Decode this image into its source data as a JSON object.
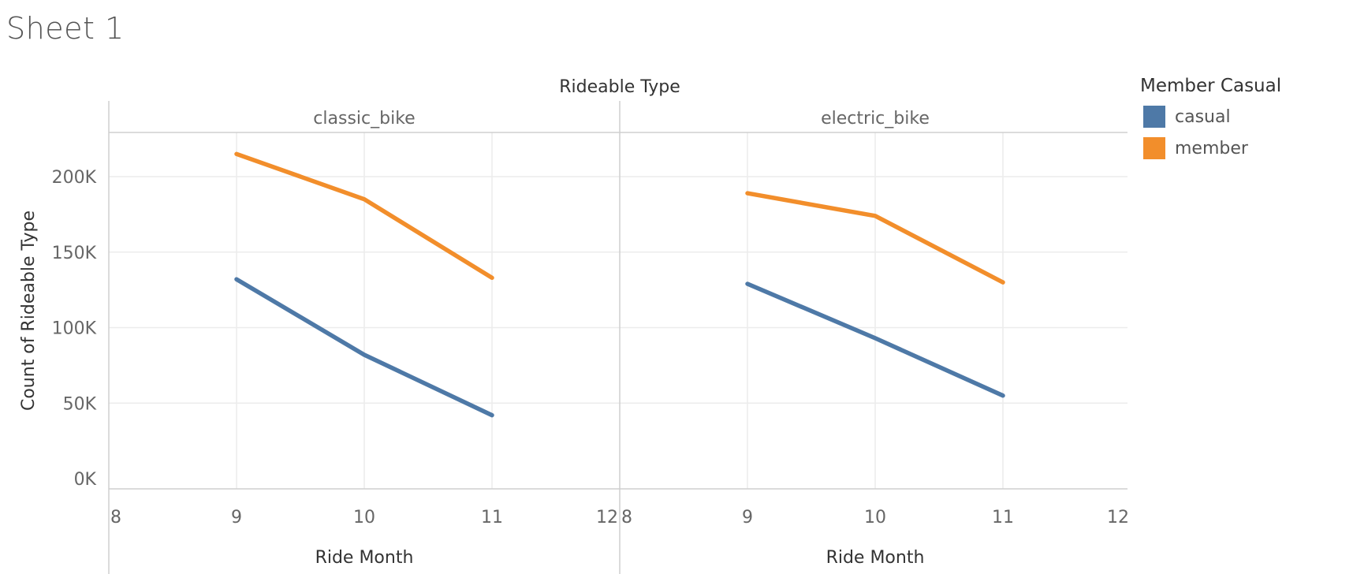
{
  "sheet": {
    "title": "Sheet 1"
  },
  "legend": {
    "title": "Member Casual",
    "items": [
      {
        "label": "casual",
        "color": "#4e79a7"
      },
      {
        "label": "member",
        "color": "#f28e2b"
      }
    ]
  },
  "chart_data": {
    "type": "line",
    "column_header": "Rideable Type",
    "xlabel": "Ride Month",
    "ylabel": "Count of Rideable Type",
    "xlim": [
      8,
      12
    ],
    "x_ticks": [
      8,
      9,
      10,
      11,
      12
    ],
    "ylim": [
      0,
      230000
    ],
    "y_ticks": [
      0,
      50000,
      100000,
      150000,
      200000
    ],
    "y_tick_labels": [
      "0K",
      "50K",
      "100K",
      "150K",
      "200K"
    ],
    "grid": true,
    "legend_position": "right",
    "panels": [
      {
        "name": "classic_bike",
        "series": [
          {
            "name": "casual",
            "x": [
              9,
              10,
              11
            ],
            "values": [
              132000,
              82000,
              42000
            ]
          },
          {
            "name": "member",
            "x": [
              9,
              10,
              11
            ],
            "values": [
              215000,
              185000,
              133000
            ]
          }
        ]
      },
      {
        "name": "electric_bike",
        "series": [
          {
            "name": "casual",
            "x": [
              9,
              10,
              11
            ],
            "values": [
              129000,
              93000,
              55000
            ]
          },
          {
            "name": "member",
            "x": [
              9,
              10,
              11
            ],
            "values": [
              189000,
              174000,
              130000
            ]
          }
        ]
      }
    ]
  }
}
